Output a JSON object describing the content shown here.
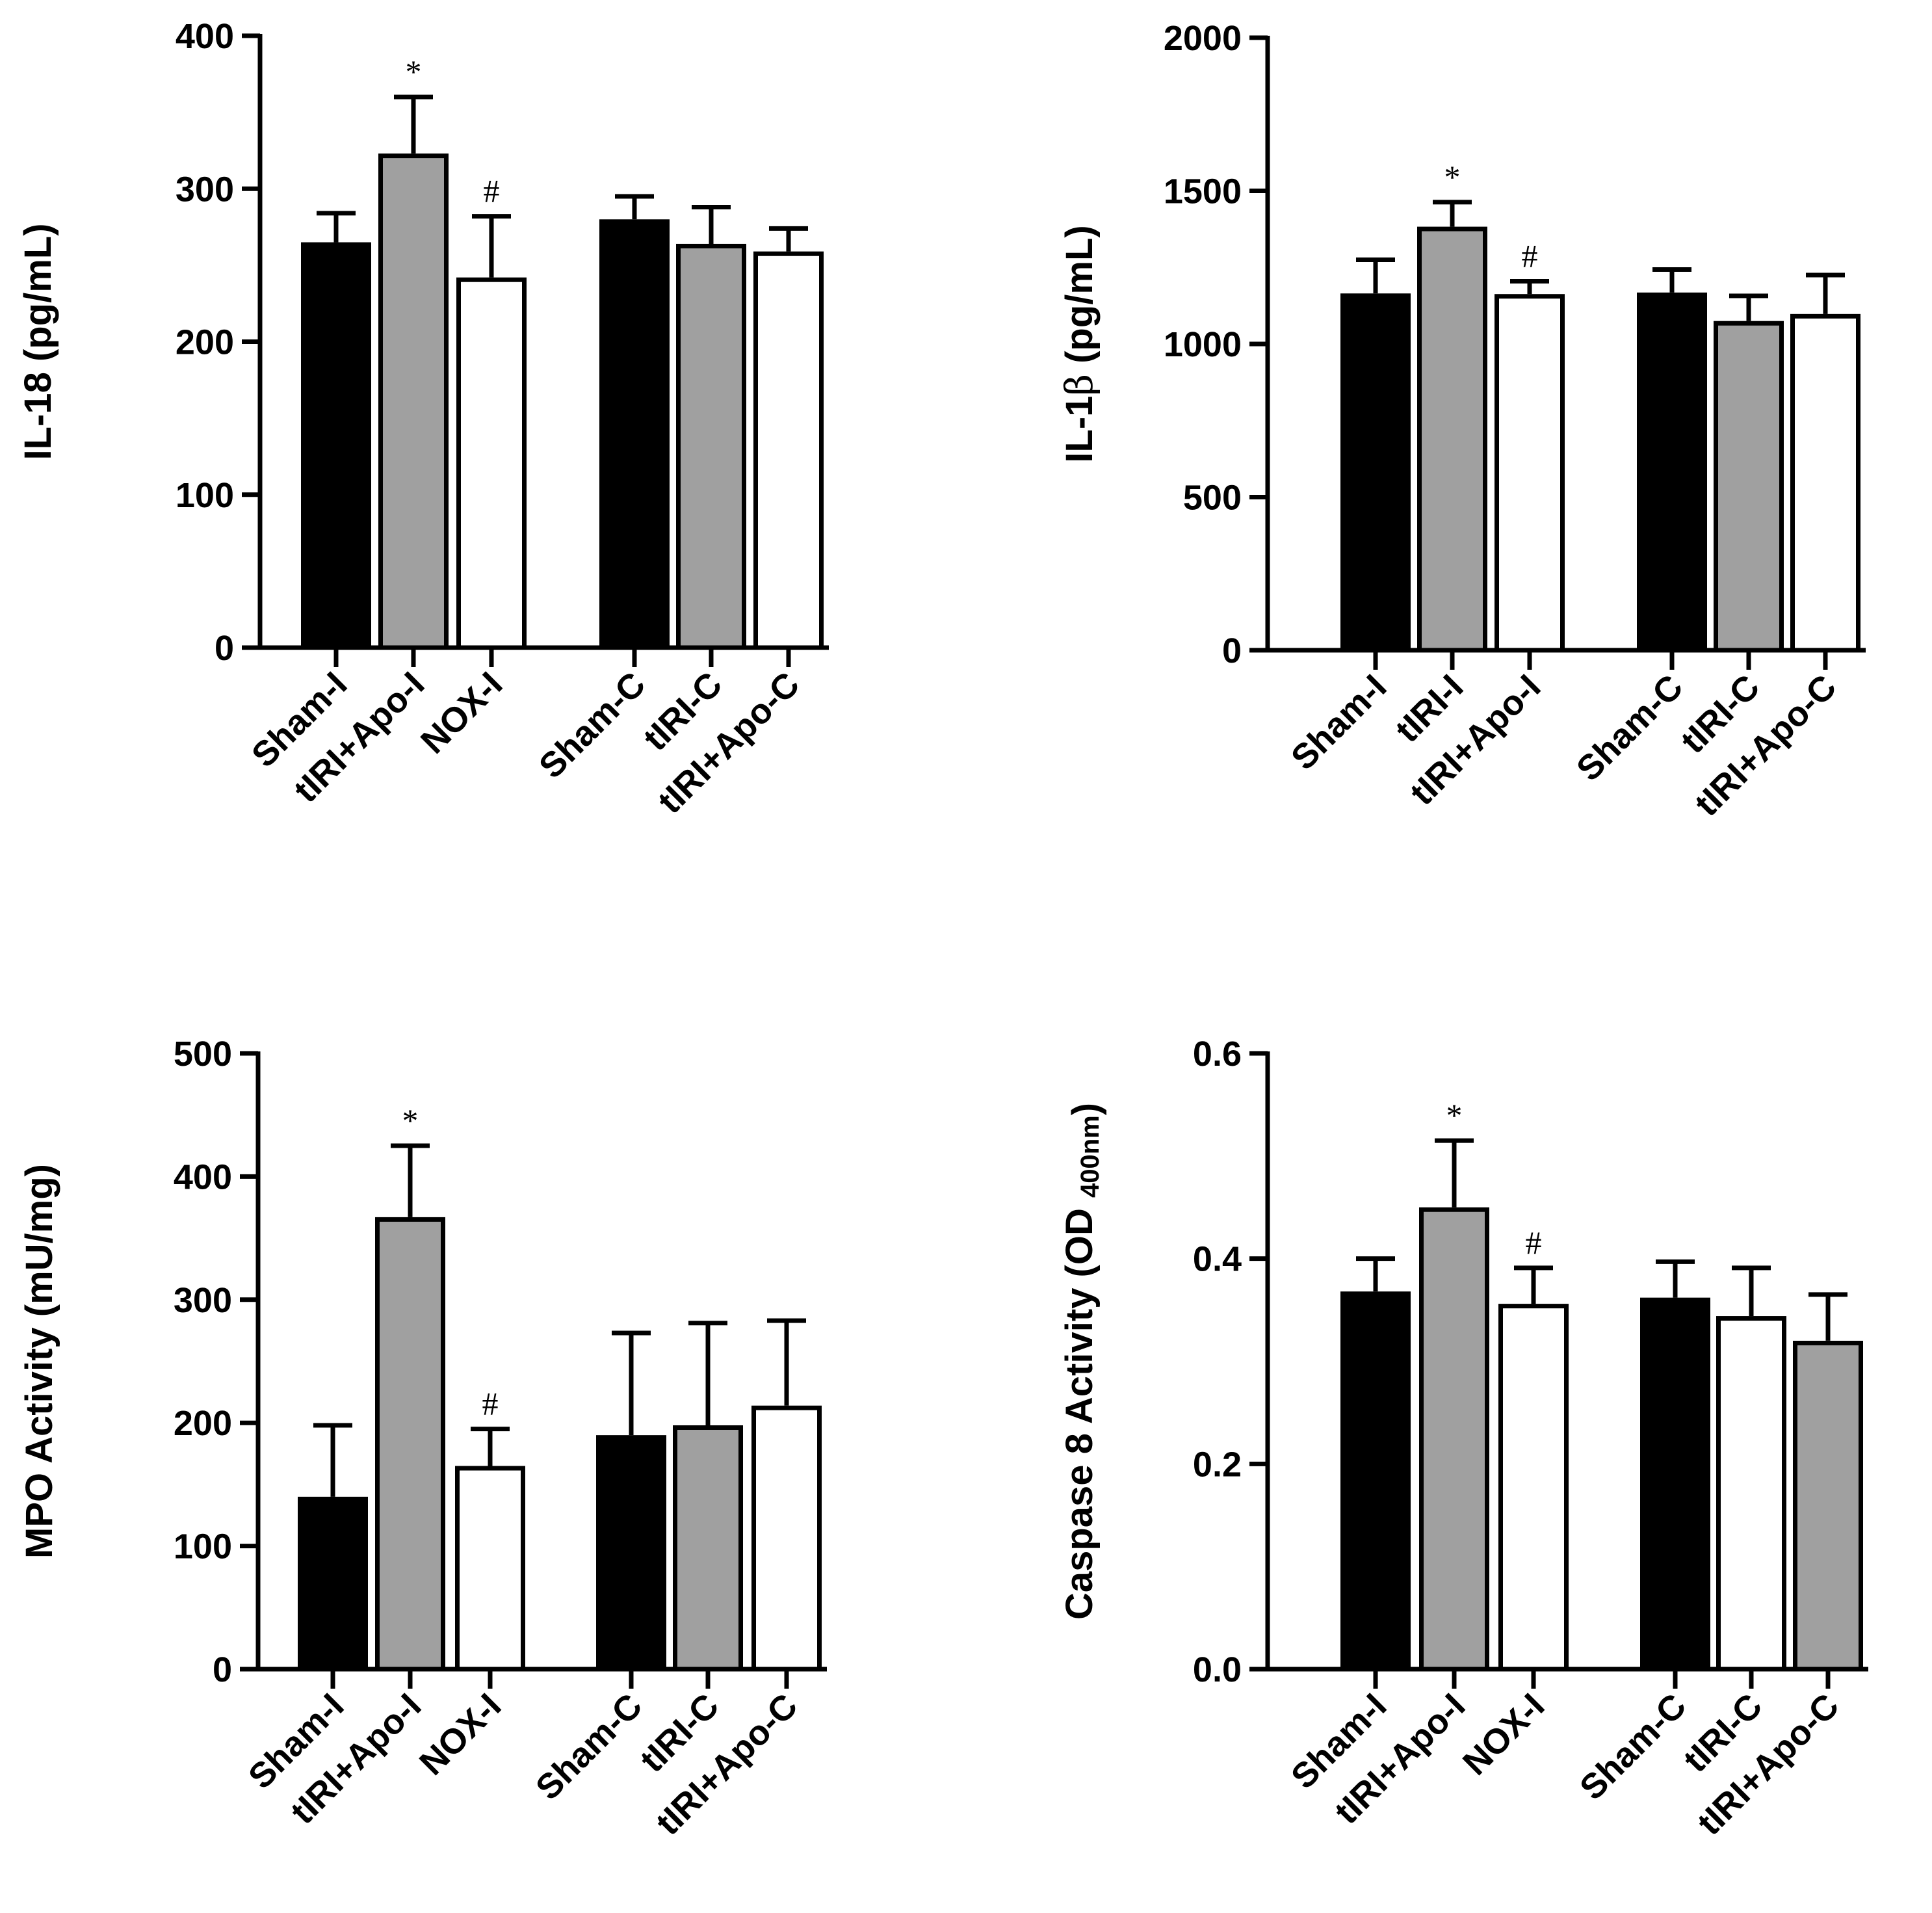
{
  "chart_data": [
    {
      "type": "bar",
      "id": "il18",
      "ylabel": "IL-18 (pg/mL)",
      "ylabel_parts": [
        {
          "text": "IL-18 (pg/mL)"
        }
      ],
      "ylim": [
        0,
        400
      ],
      "yticks": [
        0,
        100,
        200,
        300,
        400
      ],
      "ytick_labels": [
        "0",
        "100",
        "200",
        "300",
        "400"
      ],
      "categories": [
        "Sham-I",
        "tIRI+Apo-I",
        "NOX-I",
        "Sham-C",
        "tIRI-C",
        "tIRI+Apo-C"
      ],
      "values": [
        265,
        323,
        242,
        280,
        264,
        259
      ],
      "errors": [
        19,
        37,
        40,
        15,
        24,
        15
      ],
      "fills": [
        "#000000",
        "#a0a0a0",
        "#ffffff",
        "#000000",
        "#a0a0a0",
        "#ffffff"
      ],
      "markers": [
        "",
        "*",
        "#",
        "",
        "",
        ""
      ]
    },
    {
      "type": "bar",
      "id": "il1b",
      "ylabel": "IL-1β (pg/mL)",
      "ylabel_parts": [
        {
          "text": "IL-1"
        },
        {
          "text": "β",
          "serif": true
        },
        {
          "text": " (pg/mL)"
        }
      ],
      "ylim": [
        0,
        2000
      ],
      "yticks": [
        0,
        500,
        1000,
        1500,
        2000
      ],
      "ytick_labels": [
        "0",
        "500",
        "1000",
        "1500",
        "2000"
      ],
      "categories": [
        "Sham-I",
        "tIRI-I",
        "tIRI+Apo-I",
        "Sham-C",
        "tIRI-C",
        "tIRI+Apo-C"
      ],
      "values": [
        1165,
        1383,
        1163,
        1168,
        1075,
        1098
      ],
      "errors": [
        110,
        80,
        42,
        75,
        82,
        127
      ],
      "fills": [
        "#000000",
        "#a0a0a0",
        "#ffffff",
        "#000000",
        "#a0a0a0",
        "#ffffff"
      ],
      "markers": [
        "",
        "*",
        "#",
        "",
        "",
        ""
      ]
    },
    {
      "type": "bar",
      "id": "mpo",
      "ylabel": "MPO Activity (mU/mg)",
      "ylabel_parts": [
        {
          "text": "MPO Activity (mU/mg)"
        }
      ],
      "ylim": [
        0,
        500
      ],
      "yticks": [
        0,
        100,
        200,
        300,
        400,
        500
      ],
      "ytick_labels": [
        "0",
        "100",
        "200",
        "300",
        "400",
        "500"
      ],
      "categories": [
        "Sham-I",
        "tIRI+Apo-I",
        "NOX-I",
        "Sham-C",
        "tIRI-C",
        "tIRI+Apo-C"
      ],
      "values": [
        140,
        367,
        165,
        190,
        198,
        214
      ],
      "errors": [
        58,
        58,
        30,
        83,
        83,
        69
      ],
      "fills": [
        "#000000",
        "#a0a0a0",
        "#ffffff",
        "#000000",
        "#a0a0a0",
        "#ffffff"
      ],
      "markers": [
        "",
        "*",
        "#",
        "",
        "",
        ""
      ]
    },
    {
      "type": "bar",
      "id": "casp8",
      "ylabel": "Caspase 8 Activity (OD 400nm)",
      "ylabel_parts": [
        {
          "text": "Caspase 8 Activity (OD "
        },
        {
          "text": "400nm",
          "sub": true
        },
        {
          "text": ")"
        }
      ],
      "ylim": [
        0,
        0.6
      ],
      "yticks": [
        0,
        0.2,
        0.4,
        0.6
      ],
      "ytick_labels": [
        "0.0",
        "0.2",
        "0.4",
        "0.6"
      ],
      "categories": [
        "Sham-I",
        "tIRI+Apo-I",
        "NOX-I",
        "Sham-C",
        "tIRI-C",
        "tIRI+Apo-C"
      ],
      "values": [
        0.368,
        0.45,
        0.356,
        0.362,
        0.344,
        0.32
      ],
      "errors": [
        0.032,
        0.065,
        0.035,
        0.035,
        0.047,
        0.045
      ],
      "fills": [
        "#000000",
        "#a0a0a0",
        "#ffffff",
        "#000000",
        "#ffffff",
        "#a0a0a0"
      ],
      "markers": [
        "",
        "*",
        "#",
        "",
        "",
        ""
      ]
    }
  ]
}
